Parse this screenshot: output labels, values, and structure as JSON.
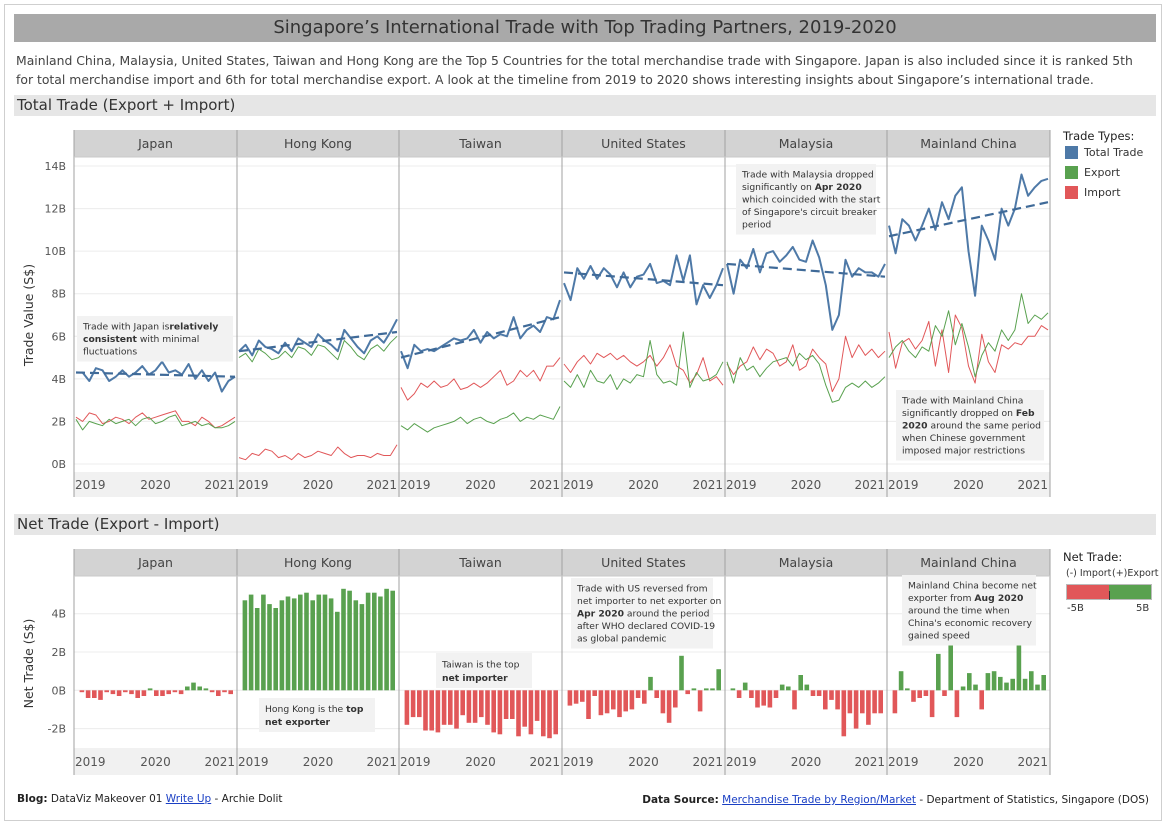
{
  "title": "Singapore’s International Trade with Top Trading Partners, 2019-2020",
  "intro": "Mainland China, Malaysia, United States, Taiwan and Hong Kong are the Top 5 Countries for the total merchandise trade with Singapore. Japan is also included since it is ranked 5th for total merchandise import and 6th for total merchandise export. A look at the timeline from 2019 to 2020 shows interesting insights about Singapore’s international trade.",
  "sections": {
    "total": "Total Trade (Export + Import)",
    "net": "Net Trade (Export - Import)"
  },
  "colors": {
    "total": "#4e79a7",
    "export": "#59a14f",
    "import": "#e15759",
    "panel_header": "#d3d3d3"
  },
  "legend": {
    "title": "Trade Types:",
    "items": [
      "Total Trade",
      "Export",
      "Import"
    ],
    "net_title": "Net Trade:",
    "net_neg_label": "(-) Import",
    "net_pos_label": "(+)Export",
    "net_min": "-5B",
    "net_max": "5B"
  },
  "footer": {
    "blog_label": "Blog:",
    "blog_text": " DataViz Makeover 01 ",
    "blog_link": "Write Up",
    "blog_author": " - Archie Dolit",
    "source_label": "Data Source:",
    "source_link": "Merchandise Trade by Region/Market",
    "source_org": " - Department of Statistics, Singapore (DOS)"
  },
  "chart_data": [
    {
      "type": "line",
      "ylabel": "Trade Value (S$)",
      "ylim": [
        0,
        14
      ],
      "yticks": [
        "0B",
        "2B",
        "4B",
        "6B",
        "8B",
        "10B",
        "12B",
        "14B"
      ],
      "x_labels": [
        "2019",
        "2020",
        "2021"
      ],
      "panels": [
        {
          "name": "Japan",
          "total": [
            4.3,
            4.3,
            3.9,
            4.5,
            4.4,
            3.9,
            4.1,
            4.4,
            4.1,
            4.3,
            4.6,
            4.2,
            4.4,
            4.8,
            4.3,
            4.4,
            4.2,
            4.7,
            4.0,
            4.4,
            3.9,
            4.3,
            3.4,
            3.9,
            4.1
          ],
          "export": [
            2.1,
            1.6,
            2.0,
            1.9,
            1.8,
            2.1,
            1.9,
            2.0,
            2.1,
            1.8,
            2.1,
            2.2,
            1.9,
            2.0,
            2.2,
            2.3,
            1.8,
            1.9,
            2.0,
            1.8,
            1.9,
            1.7,
            1.7,
            1.8,
            2.0
          ],
          "import": [
            2.2,
            2.0,
            2.4,
            2.3,
            1.9,
            2.0,
            2.2,
            2.1,
            1.9,
            2.2,
            2.4,
            2.1,
            2.2,
            2.3,
            2.4,
            2.5,
            2.0,
            2.0,
            1.8,
            2.2,
            2.0,
            1.7,
            1.8,
            2.0,
            2.2
          ],
          "trend": [
            4.3,
            4.1
          ]
        },
        {
          "name": "Hong Kong",
          "total": [
            5.3,
            5.6,
            5.1,
            5.8,
            5.5,
            5.4,
            5.2,
            5.7,
            5.3,
            5.9,
            5.7,
            5.5,
            6.1,
            5.8,
            5.6,
            5.3,
            6.3,
            5.9,
            5.5,
            5.2,
            5.8,
            6.0,
            5.7,
            6.2,
            6.8
          ],
          "export": [
            5.0,
            5.2,
            4.8,
            5.4,
            5.2,
            4.9,
            5.0,
            5.3,
            5.0,
            5.5,
            5.4,
            5.1,
            5.6,
            5.5,
            5.2,
            4.9,
            5.8,
            5.5,
            5.1,
            4.9,
            5.4,
            5.6,
            5.3,
            5.7,
            6.0
          ],
          "import": [
            0.3,
            0.2,
            0.5,
            0.4,
            0.7,
            0.6,
            0.3,
            0.4,
            0.2,
            0.5,
            0.3,
            0.4,
            0.6,
            0.5,
            0.4,
            0.8,
            0.5,
            0.3,
            0.4,
            0.4,
            0.3,
            0.5,
            0.4,
            0.4,
            0.9
          ],
          "trend": [
            5.3,
            6.2
          ]
        },
        {
          "name": "Taiwan",
          "total": [
            5.3,
            4.5,
            5.6,
            5.3,
            5.4,
            5.3,
            5.5,
            5.7,
            5.9,
            5.8,
            5.9,
            6.3,
            5.7,
            6.2,
            5.9,
            6.1,
            6.0,
            6.9,
            5.9,
            6.3,
            6.5,
            6.2,
            6.9,
            6.8,
            7.7
          ],
          "export": [
            1.8,
            1.6,
            1.9,
            1.7,
            1.5,
            1.7,
            1.8,
            1.9,
            2.0,
            2.2,
            1.9,
            2.1,
            2.2,
            2.0,
            1.9,
            2.1,
            2.2,
            2.4,
            2.0,
            2.2,
            2.1,
            2.3,
            2.2,
            2.1,
            2.7
          ],
          "import": [
            3.6,
            3.0,
            3.3,
            3.8,
            3.6,
            3.9,
            3.6,
            3.7,
            4.0,
            3.5,
            3.6,
            3.8,
            3.6,
            3.8,
            4.1,
            4.4,
            3.7,
            3.9,
            4.4,
            4.1,
            4.4,
            3.9,
            4.6,
            4.6,
            5.0
          ],
          "trend": [
            5.0,
            6.9
          ]
        },
        {
          "name": "United States",
          "total": [
            8.5,
            7.7,
            9.2,
            8.7,
            9.3,
            8.7,
            9.2,
            8.9,
            8.3,
            9.0,
            8.3,
            8.8,
            8.9,
            9.4,
            8.5,
            8.6,
            8.4,
            9.8,
            8.6,
            9.8,
            7.5,
            8.4,
            7.8,
            8.4,
            9.2
          ],
          "export": [
            3.9,
            3.6,
            4.2,
            3.6,
            4.4,
            3.9,
            3.8,
            4.2,
            3.5,
            4.0,
            3.8,
            4.2,
            4.1,
            5.8,
            4.2,
            3.8,
            3.9,
            3.7,
            6.2,
            3.6,
            4.3,
            3.9,
            4.0,
            4.2,
            4.8
          ],
          "import": [
            4.7,
            4.3,
            4.8,
            5.1,
            4.7,
            5.2,
            5.0,
            5.2,
            4.9,
            5.1,
            4.8,
            4.6,
            4.8,
            5.1,
            4.6,
            5.0,
            5.6,
            4.6,
            4.4,
            3.8,
            4.2,
            5.0,
            3.9,
            4.1,
            3.7
          ],
          "trend": [
            9.0,
            8.4
          ]
        },
        {
          "name": "Malaysia",
          "total": [
            9.4,
            8.0,
            9.6,
            9.2,
            10.1,
            9.0,
            9.9,
            10.0,
            9.5,
            9.8,
            10.2,
            9.6,
            9.5,
            10.5,
            9.7,
            8.4,
            6.3,
            7.0,
            9.6,
            8.8,
            9.2,
            9.0,
            9.0,
            8.8,
            9.4
          ],
          "export": [
            4.8,
            3.8,
            5.0,
            4.4,
            4.6,
            4.1,
            4.5,
            4.8,
            4.9,
            5.0,
            4.6,
            5.2,
            4.9,
            5.1,
            4.7,
            3.7,
            2.9,
            3.0,
            3.6,
            3.8,
            3.6,
            3.9,
            3.6,
            3.8,
            4.1
          ],
          "import": [
            4.7,
            4.2,
            4.6,
            4.8,
            5.5,
            4.9,
            5.4,
            5.2,
            4.6,
            4.8,
            5.6,
            4.4,
            4.6,
            5.4,
            5.0,
            4.7,
            3.4,
            4.0,
            6.0,
            5.0,
            5.6,
            5.1,
            5.4,
            5.0,
            5.3
          ],
          "trend": [
            9.4,
            8.8
          ]
        },
        {
          "name": "Mainland China",
          "total": [
            11.2,
            9.9,
            11.5,
            11.2,
            10.5,
            11.2,
            12.0,
            11.0,
            12.3,
            11.5,
            12.6,
            13.0,
            10.0,
            7.9,
            11.2,
            10.5,
            9.6,
            12.0,
            11.2,
            12.0,
            13.6,
            12.6,
            13.0,
            13.3,
            13.4
          ],
          "export": [
            5.0,
            5.5,
            5.8,
            5.3,
            5.0,
            5.5,
            5.3,
            6.5,
            6.0,
            7.2,
            5.6,
            6.6,
            5.5,
            4.1,
            5.1,
            5.7,
            5.3,
            6.3,
            5.8,
            6.3,
            8.0,
            6.6,
            7.0,
            6.8,
            7.1
          ],
          "import": [
            6.2,
            4.5,
            5.7,
            5.9,
            5.4,
            5.8,
            6.7,
            4.6,
            6.3,
            4.3,
            7.0,
            6.4,
            4.6,
            3.8,
            6.1,
            4.8,
            4.3,
            5.6,
            5.4,
            5.7,
            5.6,
            6.0,
            6.0,
            6.5,
            6.3
          ],
          "trend": [
            10.7,
            12.3
          ]
        }
      ]
    },
    {
      "type": "bar",
      "ylabel": "Net Trade (S$)",
      "ylim": [
        -2.7,
        5.5
      ],
      "yticks": [
        "-2B",
        "0B",
        "2B",
        "4B"
      ],
      "x_labels": [
        "2019",
        "2020",
        "2021"
      ],
      "panels": [
        {
          "name": "Japan",
          "values": [
            -0.1,
            -0.4,
            -0.4,
            -0.5,
            -0.1,
            -0.2,
            -0.3,
            -0.1,
            -0.2,
            -0.4,
            -0.3,
            0.1,
            -0.3,
            -0.3,
            -0.2,
            -0.1,
            -0.2,
            0.2,
            0.4,
            0.2,
            0.1,
            -0.1,
            -0.3,
            -0.1,
            -0.2
          ]
        },
        {
          "name": "Hong Kong",
          "values": [
            4.7,
            5.0,
            4.3,
            5.0,
            4.5,
            4.3,
            4.7,
            4.9,
            4.8,
            5.0,
            5.1,
            4.7,
            5.0,
            5.0,
            4.8,
            4.1,
            5.3,
            5.2,
            4.7,
            4.5,
            5.1,
            5.1,
            4.9,
            5.3,
            5.2
          ]
        },
        {
          "name": "Taiwan",
          "values": [
            -1.8,
            -1.4,
            -1.4,
            -2.1,
            -2.1,
            -2.2,
            -1.8,
            -1.8,
            -2.0,
            -1.3,
            -1.7,
            -1.7,
            -1.4,
            -1.8,
            -2.2,
            -2.3,
            -1.5,
            -1.5,
            -2.4,
            -1.9,
            -2.3,
            -1.6,
            -2.4,
            -2.5,
            -2.3
          ]
        },
        {
          "name": "United States",
          "values": [
            -0.8,
            -0.7,
            -0.6,
            -1.5,
            -0.3,
            -1.3,
            -1.2,
            -1.0,
            -1.4,
            -1.1,
            -1.0,
            -0.4,
            -0.7,
            0.7,
            -0.4,
            -1.2,
            -1.7,
            -0.9,
            1.8,
            -0.2,
            0.1,
            -1.1,
            0.1,
            0.1,
            1.1
          ]
        },
        {
          "name": "Malaysia",
          "values": [
            0.1,
            -0.4,
            0.4,
            -0.4,
            -0.9,
            -0.8,
            -0.9,
            -0.4,
            0.3,
            0.2,
            -1.0,
            0.8,
            0.3,
            -0.3,
            -0.3,
            -1.0,
            -0.5,
            -1.0,
            -2.4,
            -1.2,
            -2.0,
            -1.2,
            -1.8,
            -1.2,
            -1.2
          ]
        },
        {
          "name": "Mainland China",
          "values": [
            -1.2,
            1.0,
            0.1,
            -0.6,
            -0.4,
            -0.3,
            -1.4,
            1.9,
            -0.3,
            2.9,
            -1.4,
            0.2,
            0.9,
            0.3,
            -1.0,
            0.9,
            1.0,
            0.7,
            0.4,
            0.6,
            2.4,
            0.6,
            1.0,
            0.3,
            0.8
          ]
        }
      ]
    }
  ],
  "annotations": {
    "japan": [
      "Trade with Japan is|relatively|",
      "|consistent| with minimal",
      "fluctuations"
    ],
    "malaysia": [
      "Trade with Malaysia dropped",
      "significantly on |Apr 2020|",
      "which coincided with the start",
      "of Singapore's circuit breaker",
      "period"
    ],
    "china": [
      "Trade with Mainland China",
      "significantly dropped on |Feb",
      "|2020| around the same period",
      "when Chinese government",
      "imposed major restrictions"
    ],
    "us_net": [
      "Trade with US reversed from",
      "net importer to net exporter on",
      "|Apr 2020| around the period",
      "after WHO declared COVID-19",
      "as global pandemic"
    ],
    "china_net": [
      "Mainland China become net",
      "exporter from |Aug 2020|",
      "around  the time when",
      "China's economic recovery",
      "gained speed"
    ],
    "taiwan_net": [
      "Taiwan is the top",
      "|net importer|"
    ],
    "hk_net": [
      "Hong Kong is the |top|",
      "|net exporter|"
    ]
  }
}
